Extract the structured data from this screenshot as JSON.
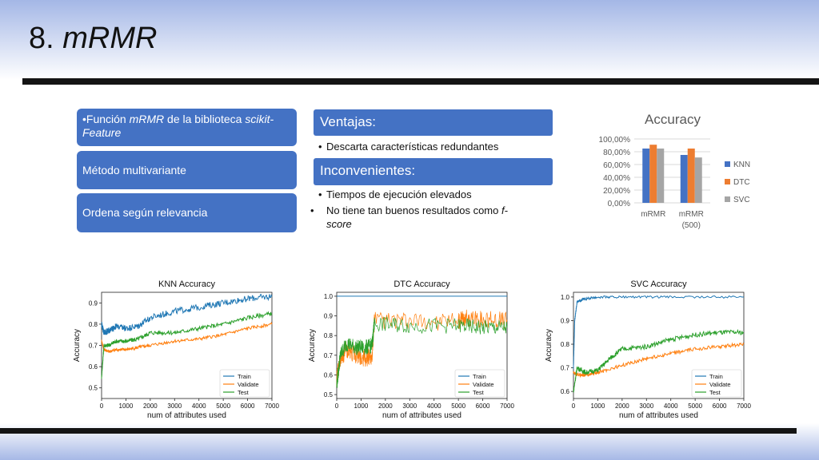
{
  "slide": {
    "title_number": "8.",
    "title_name": "mRMR"
  },
  "left_boxes": {
    "box1": {
      "bullet": "•",
      "pre": "Función ",
      "em1": "mRMR",
      "mid": " de la biblioteca ",
      "em2": "scikit-Feature"
    },
    "box2": "Método multivariante",
    "box3": "Ordena según relevancia"
  },
  "ventajas": {
    "header": "Ventajas:",
    "items": [
      "Descarta características redundantes"
    ]
  },
  "inconvenientes": {
    "header": "Inconvenientes:",
    "items": [
      "Tiempos de ejecución elevados"
    ],
    "item2_pre": "No tiene tan buenos resultados como ",
    "item2_em": "f-score"
  },
  "colors": {
    "blue_box": "#4472c4",
    "knn": "#4472c4",
    "dtc": "#ed7d31",
    "svc": "#a5a5a5",
    "train": "#1f77b4",
    "validate": "#ff7f0e",
    "test": "#2ca02c"
  },
  "chart_data": [
    {
      "type": "bar",
      "title": "Accuracy",
      "categories": [
        "mRMR",
        "mRMR (500)"
      ],
      "series": [
        {
          "name": "KNN",
          "values": [
            0.85,
            0.75
          ]
        },
        {
          "name": "DTC",
          "values": [
            0.91,
            0.85
          ]
        },
        {
          "name": "SVC",
          "values": [
            0.85,
            0.71
          ]
        }
      ],
      "yticks": [
        "0,00%",
        "20,00%",
        "40,00%",
        "60,00%",
        "80,00%",
        "100,00%"
      ],
      "ylim": [
        0,
        1
      ],
      "legend": "right"
    },
    {
      "type": "line",
      "title": "KNN Accuracy",
      "xlabel": "num of attributes used",
      "ylabel": "Accuracy",
      "xlim": [
        0,
        7000
      ],
      "ylim": [
        0.45,
        0.95
      ],
      "xticks": [
        "0",
        "1000",
        "2000",
        "3000",
        "4000",
        "5000",
        "6000",
        "7000"
      ],
      "yticks": [
        "0.5",
        "0.6",
        "0.7",
        "0.8",
        "0.9"
      ],
      "legend": "bottom-right",
      "series": [
        {
          "name": "Train",
          "x": [
            0,
            100,
            300,
            600,
            1000,
            1500,
            2000,
            3000,
            4000,
            5000,
            6000,
            7000
          ],
          "y": [
            0.8,
            0.76,
            0.77,
            0.79,
            0.78,
            0.79,
            0.83,
            0.86,
            0.88,
            0.9,
            0.92,
            0.93
          ]
        },
        {
          "name": "Validate",
          "x": [
            0,
            100,
            300,
            600,
            1000,
            1500,
            2000,
            3000,
            4000,
            5000,
            6000,
            7000
          ],
          "y": [
            0.72,
            0.68,
            0.67,
            0.68,
            0.68,
            0.69,
            0.7,
            0.72,
            0.73,
            0.75,
            0.78,
            0.8
          ]
        },
        {
          "name": "Test",
          "x": [
            0,
            100,
            300,
            600,
            1000,
            1500,
            2000,
            3000,
            4000,
            5000,
            6000,
            7000
          ],
          "y": [
            0.55,
            0.7,
            0.7,
            0.72,
            0.72,
            0.73,
            0.76,
            0.76,
            0.78,
            0.8,
            0.83,
            0.85
          ]
        }
      ]
    },
    {
      "type": "line",
      "title": "DTC Accuracy",
      "xlabel": "num of attributes used",
      "ylabel": "Accuracy",
      "xlim": [
        0,
        7000
      ],
      "ylim": [
        0.48,
        1.02
      ],
      "xticks": [
        "0",
        "1000",
        "2000",
        "3000",
        "4000",
        "5000",
        "6000",
        "7000"
      ],
      "yticks": [
        "0.5",
        "0.6",
        "0.7",
        "0.8",
        "0.9",
        "1.0"
      ],
      "legend": "bottom-right",
      "series": [
        {
          "name": "Train",
          "x": [
            0,
            7000
          ],
          "y": [
            1.0,
            1.0
          ]
        },
        {
          "name": "Validate",
          "x": [
            0,
            150,
            400,
            800,
            1200,
            1450,
            1550,
            3000,
            5000,
            5300,
            6000,
            7000
          ],
          "y": [
            0.58,
            0.68,
            0.73,
            0.7,
            0.68,
            0.7,
            0.88,
            0.87,
            0.87,
            0.89,
            0.88,
            0.88
          ]
        },
        {
          "name": "Test",
          "x": [
            0,
            150,
            400,
            800,
            1200,
            1450,
            1550,
            3000,
            5000,
            6000,
            7000
          ],
          "y": [
            0.55,
            0.7,
            0.76,
            0.74,
            0.74,
            0.75,
            0.86,
            0.85,
            0.85,
            0.84,
            0.84
          ]
        }
      ]
    },
    {
      "type": "line",
      "title": "SVC Accuracy",
      "xlabel": "num of attributes used",
      "ylabel": "Accuracy",
      "xlim": [
        0,
        7000
      ],
      "ylim": [
        0.57,
        1.02
      ],
      "xticks": [
        "0",
        "1000",
        "2000",
        "3000",
        "4000",
        "5000",
        "6000",
        "7000"
      ],
      "yticks": [
        "0.6",
        "0.7",
        "0.8",
        "0.9",
        "1.0"
      ],
      "legend": "bottom-right",
      "series": [
        {
          "name": "Train",
          "x": [
            0,
            50,
            150,
            400,
            1000,
            2000,
            4000,
            7000
          ],
          "y": [
            0.7,
            0.9,
            0.98,
            0.99,
            1.0,
            1.0,
            1.0,
            1.0
          ]
        },
        {
          "name": "Validate",
          "x": [
            0,
            150,
            500,
            1000,
            2000,
            3000,
            4000,
            5000,
            6000,
            7000
          ],
          "y": [
            0.68,
            0.67,
            0.67,
            0.68,
            0.71,
            0.74,
            0.76,
            0.78,
            0.79,
            0.8
          ]
        },
        {
          "name": "Test",
          "x": [
            0,
            150,
            500,
            1000,
            1500,
            2000,
            3000,
            4000,
            5000,
            6000,
            7000
          ],
          "y": [
            0.6,
            0.7,
            0.68,
            0.69,
            0.74,
            0.78,
            0.79,
            0.82,
            0.84,
            0.85,
            0.85
          ]
        }
      ]
    }
  ]
}
